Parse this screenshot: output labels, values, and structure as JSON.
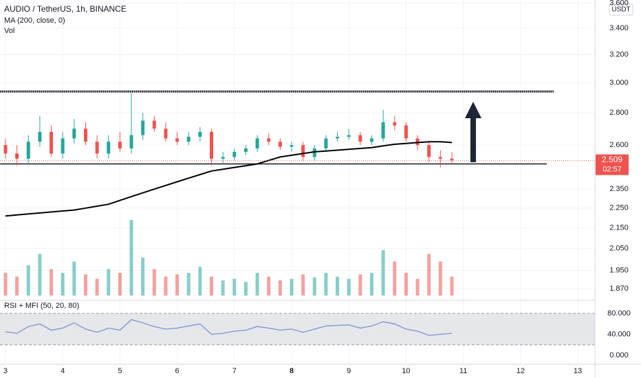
{
  "chart_data": {
    "type": "candlestick",
    "title": "AUDIO / TetherUS, 1h, BINANCE",
    "indicator_labels": [
      "MA (200, close, 0)",
      "Vol"
    ],
    "currency": "USDT",
    "log_scale": true,
    "grid": true,
    "up_color": "#26a69a",
    "down_color": "#ef5350",
    "x": [
      3.0,
      3.2,
      3.4,
      3.6,
      3.8,
      4.0,
      4.2,
      4.4,
      4.6,
      4.8,
      5.0,
      5.2,
      5.4,
      5.6,
      5.8,
      6.0,
      6.2,
      6.4,
      6.6,
      6.8,
      7.0,
      7.2,
      7.4,
      7.6,
      7.8,
      8.0,
      8.2,
      8.4,
      8.6,
      8.8,
      9.0,
      9.2,
      9.4,
      9.6,
      9.8,
      10.0,
      10.2,
      10.4,
      10.6,
      10.8
    ],
    "open": [
      2.6,
      2.55,
      2.52,
      2.62,
      2.68,
      2.55,
      2.64,
      2.7,
      2.62,
      2.55,
      2.62,
      2.58,
      2.66,
      2.75,
      2.7,
      2.64,
      2.62,
      2.65,
      2.68,
      2.52,
      2.53,
      2.56,
      2.58,
      2.64,
      2.62,
      2.59,
      2.6,
      2.53,
      2.58,
      2.64,
      2.65,
      2.66,
      2.62,
      2.64,
      2.74,
      2.72,
      2.64,
      2.6,
      2.53,
      2.52
    ],
    "high": [
      2.64,
      2.6,
      2.66,
      2.78,
      2.72,
      2.68,
      2.76,
      2.74,
      2.66,
      2.66,
      2.68,
      2.93,
      2.8,
      2.78,
      2.74,
      2.68,
      2.68,
      2.71,
      2.7,
      2.56,
      2.58,
      2.6,
      2.66,
      2.67,
      2.64,
      2.62,
      2.62,
      2.6,
      2.66,
      2.68,
      2.7,
      2.68,
      2.66,
      2.82,
      2.78,
      2.74,
      2.66,
      2.62,
      2.57,
      2.56
    ],
    "low": [
      2.52,
      2.48,
      2.49,
      2.59,
      2.53,
      2.52,
      2.61,
      2.6,
      2.52,
      2.52,
      2.56,
      2.55,
      2.63,
      2.68,
      2.62,
      2.6,
      2.6,
      2.62,
      2.48,
      2.49,
      2.51,
      2.54,
      2.56,
      2.6,
      2.57,
      2.56,
      2.51,
      2.51,
      2.56,
      2.62,
      2.63,
      2.6,
      2.6,
      2.62,
      2.69,
      2.62,
      2.57,
      2.5,
      2.47,
      2.49
    ],
    "close": [
      2.55,
      2.52,
      2.62,
      2.68,
      2.55,
      2.64,
      2.7,
      2.62,
      2.55,
      2.62,
      2.58,
      2.66,
      2.75,
      2.7,
      2.64,
      2.62,
      2.65,
      2.68,
      2.52,
      2.53,
      2.56,
      2.58,
      2.64,
      2.62,
      2.59,
      2.6,
      2.53,
      2.58,
      2.64,
      2.65,
      2.66,
      2.62,
      2.64,
      2.74,
      2.72,
      2.64,
      2.6,
      2.53,
      2.52,
      2.51
    ],
    "ma": [
      2.21,
      2.215,
      2.22,
      2.225,
      2.23,
      2.235,
      2.24,
      2.25,
      2.26,
      2.27,
      2.29,
      2.31,
      2.33,
      2.35,
      2.37,
      2.39,
      2.41,
      2.43,
      2.45,
      2.46,
      2.47,
      2.48,
      2.49,
      2.51,
      2.53,
      2.54,
      2.55,
      2.56,
      2.565,
      2.57,
      2.575,
      2.58,
      2.585,
      2.595,
      2.605,
      2.61,
      2.615,
      2.62,
      2.62,
      2.615
    ],
    "volume": [
      30,
      25,
      40,
      55,
      35,
      30,
      45,
      28,
      22,
      35,
      30,
      100,
      50,
      35,
      25,
      28,
      30,
      38,
      25,
      20,
      22,
      18,
      30,
      25,
      20,
      22,
      28,
      24,
      30,
      25,
      22,
      28,
      30,
      60,
      45,
      30,
      22,
      55,
      45,
      25
    ],
    "levels": [
      2.94,
      2.49
    ],
    "last_price": {
      "value": 2.509,
      "label": "2.509"
    },
    "countdown": "02:57",
    "ylim": [
      1.841,
      3.627
    ],
    "yticks": [
      {
        "value": 3.6,
        "label": "3.600"
      },
      {
        "value": 3.4,
        "label": "3.400"
      },
      {
        "value": 3.2,
        "label": "3.200"
      },
      {
        "value": 3.0,
        "label": "3.000"
      },
      {
        "value": 2.8,
        "label": "2.800"
      },
      {
        "value": 2.6,
        "label": "2.600"
      },
      {
        "value": 2.35,
        "label": "2.350"
      },
      {
        "value": 2.25,
        "label": "2.250"
      },
      {
        "value": 2.15,
        "label": "2.150"
      },
      {
        "value": 2.05,
        "label": "2.050"
      },
      {
        "value": 1.95,
        "label": "1.950"
      },
      {
        "value": 1.87,
        "label": "1.870"
      }
    ],
    "xlim": [
      2.904,
      13.3
    ],
    "xticks": [
      3,
      4,
      5,
      6,
      7,
      8,
      9,
      10,
      11,
      12,
      13
    ],
    "bold_tick": 8,
    "rsi": {
      "label": "RSI + MFI (50, 20, 80)",
      "color": "#7b93d4",
      "values": [
        45,
        42,
        55,
        60,
        48,
        52,
        62,
        50,
        44,
        52,
        48,
        68,
        62,
        55,
        50,
        52,
        56,
        60,
        40,
        42,
        46,
        48,
        55,
        52,
        48,
        50,
        44,
        50,
        56,
        57,
        58,
        52,
        56,
        64,
        60,
        50,
        46,
        38,
        40,
        42
      ],
      "band": [
        20,
        80
      ],
      "ylim": [
        -17,
        81.3
      ],
      "yticks": [
        {
          "value": 80,
          "label": "80.000"
        },
        {
          "value": 40,
          "label": "40.000"
        },
        {
          "value": 0,
          "label": "0.000"
        }
      ]
    }
  }
}
